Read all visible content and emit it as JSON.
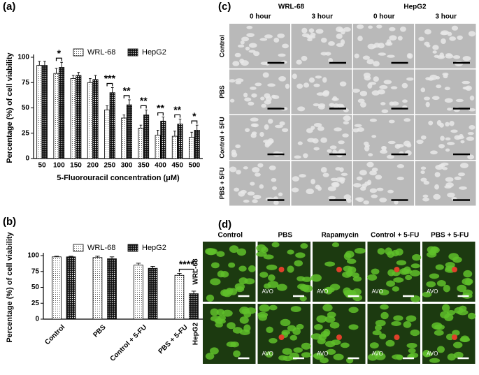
{
  "chart_data": [
    {
      "type": "bar",
      "panel_label": "(a)",
      "y_label": "Percentage (%) of cell viability",
      "x_label": "5-Fluorouracil concentration (μM)",
      "categories": [
        "50",
        "100",
        "150",
        "200",
        "250",
        "300",
        "350",
        "400",
        "450",
        "500"
      ],
      "series": [
        {
          "name": "WRL-68",
          "color": "#ffffff",
          "values": [
            92,
            84,
            79,
            75,
            48,
            40,
            30,
            23,
            22,
            21
          ],
          "errors": [
            4,
            5,
            3,
            4,
            4,
            3,
            3,
            5,
            5,
            5
          ]
        },
        {
          "name": "HepG2",
          "color": "#111111",
          "values": [
            92,
            90,
            82,
            78,
            65,
            53,
            43,
            37,
            34,
            28
          ],
          "errors": [
            4,
            5,
            3,
            4,
            5,
            5,
            5,
            4,
            5,
            5
          ]
        }
      ],
      "significance": [
        null,
        "*",
        null,
        null,
        "***",
        "**",
        "**",
        "**",
        "**",
        "*"
      ],
      "ylim": [
        0,
        100
      ],
      "yticks": [
        0,
        25,
        50,
        75,
        100
      ],
      "legend": "top"
    },
    {
      "type": "bar",
      "panel_label": "(b)",
      "y_label": "Percentage (%) of cell viability",
      "categories": [
        "Control",
        "PBS",
        "Control + 5-FU",
        "PBS + 5-FU"
      ],
      "series": [
        {
          "name": "WRL-68",
          "color": "#ffffff",
          "values": [
            98,
            97,
            85,
            69
          ],
          "errors": [
            1,
            2,
            3,
            3
          ]
        },
        {
          "name": "HepG2",
          "color": "#111111",
          "values": [
            98,
            95,
            80,
            40
          ],
          "errors": [
            1,
            3,
            3,
            4
          ]
        }
      ],
      "significance": [
        null,
        null,
        null,
        "****"
      ],
      "ylim": [
        0,
        100
      ],
      "yticks": [
        0,
        25,
        50,
        75,
        100
      ],
      "legend": "top"
    }
  ],
  "brightfield_panel": {
    "panel_label": "(c)",
    "groups": [
      "WRL-68",
      "HepG2"
    ],
    "columns": [
      "0 hour",
      "3 hour",
      "0 hour",
      "3 hour"
    ],
    "rows": [
      "Control",
      "PBS",
      "Control + 5FU",
      "PBS + 5FU"
    ]
  },
  "fluorescence_panel": {
    "panel_label": "(d)",
    "columns": [
      "Control",
      "PBS",
      "Rapamycin",
      "Control + 5-FU",
      "PBS + 5-FU"
    ],
    "rows": [
      "WRL-68",
      "HepG2"
    ],
    "annotations": [
      [
        [],
        [
          "AVO"
        ],
        [
          "AVO"
        ],
        [
          "AVO"
        ],
        [
          "AVO"
        ]
      ],
      [
        [],
        [
          "AVO"
        ],
        [
          "AVO"
        ],
        [
          "AVO"
        ],
        [
          "AVO"
        ]
      ]
    ]
  }
}
